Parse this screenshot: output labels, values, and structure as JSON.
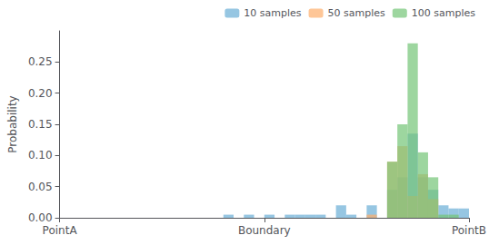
{
  "chart_data": {
    "type": "histogram",
    "ylabel": "Probability",
    "bins": [
      0.0,
      0.025,
      0.05,
      0.075,
      0.1,
      0.125,
      0.15,
      0.175,
      0.2,
      0.225,
      0.25,
      0.275,
      0.3,
      0.325,
      0.35,
      0.375,
      0.4,
      0.425,
      0.45,
      0.475,
      0.5,
      0.525,
      0.55,
      0.575,
      0.6,
      0.625,
      0.65,
      0.675,
      0.7,
      0.725,
      0.75,
      0.775,
      0.8,
      0.825,
      0.85,
      0.875,
      0.9,
      0.925,
      0.95,
      0.975,
      1.0
    ],
    "xlim": [
      0.0,
      1.0
    ],
    "xticks": [
      {
        "value": 0.0,
        "label": "PointA"
      },
      {
        "value": 0.5,
        "label": "Boundary"
      },
      {
        "value": 1.0,
        "label": "PointB"
      }
    ],
    "ylim": [
      0.0,
      0.3
    ],
    "yticks": [
      {
        "value": 0.0,
        "label": "0.00"
      },
      0.05,
      {
        "value": 0.1,
        "label": "0.10"
      },
      0.15,
      {
        "value": 0.2,
        "label": "0.20"
      },
      0.25
    ],
    "grid": false,
    "legend": "upper right",
    "series": [
      {
        "name": "10 samples",
        "color": "#6aaed6",
        "values": [
          0.0,
          0.0,
          0.0,
          0.0,
          0.0,
          0.0,
          0.0,
          0.0,
          0.0,
          0.0,
          0.0,
          0.0,
          0.0,
          0.0,
          0.0,
          0.0,
          0.005,
          0.0,
          0.005,
          0.0,
          0.005,
          0.0,
          0.005,
          0.005,
          0.005,
          0.005,
          0.0,
          0.02,
          0.005,
          0.0,
          0.02,
          0.0,
          0.045,
          0.065,
          0.135,
          0.065,
          0.045,
          0.02,
          0.015,
          0.015
        ]
      },
      {
        "name": "50 samples",
        "color": "#fdae6b",
        "values": [
          0.0,
          0.0,
          0.0,
          0.0,
          0.0,
          0.0,
          0.0,
          0.0,
          0.0,
          0.0,
          0.0,
          0.0,
          0.0,
          0.0,
          0.0,
          0.0,
          0.0,
          0.0,
          0.0,
          0.0,
          0.0,
          0.0,
          0.0,
          0.0,
          0.0,
          0.0,
          0.0,
          0.0,
          0.0,
          0.0,
          0.005,
          0.0,
          0.09,
          0.115,
          0.035,
          0.07,
          0.03,
          0.0,
          0.0,
          0.0
        ]
      },
      {
        "name": "100 samples",
        "color": "#74c476",
        "values": [
          0.0,
          0.0,
          0.0,
          0.0,
          0.0,
          0.0,
          0.0,
          0.0,
          0.0,
          0.0,
          0.0,
          0.0,
          0.0,
          0.0,
          0.0,
          0.0,
          0.0,
          0.0,
          0.0,
          0.0,
          0.0,
          0.0,
          0.0,
          0.0,
          0.0,
          0.0,
          0.0,
          0.0,
          0.0,
          0.0,
          0.0,
          0.0,
          0.09,
          0.15,
          0.28,
          0.105,
          0.065,
          0.005,
          0.005,
          0.0
        ]
      }
    ]
  }
}
